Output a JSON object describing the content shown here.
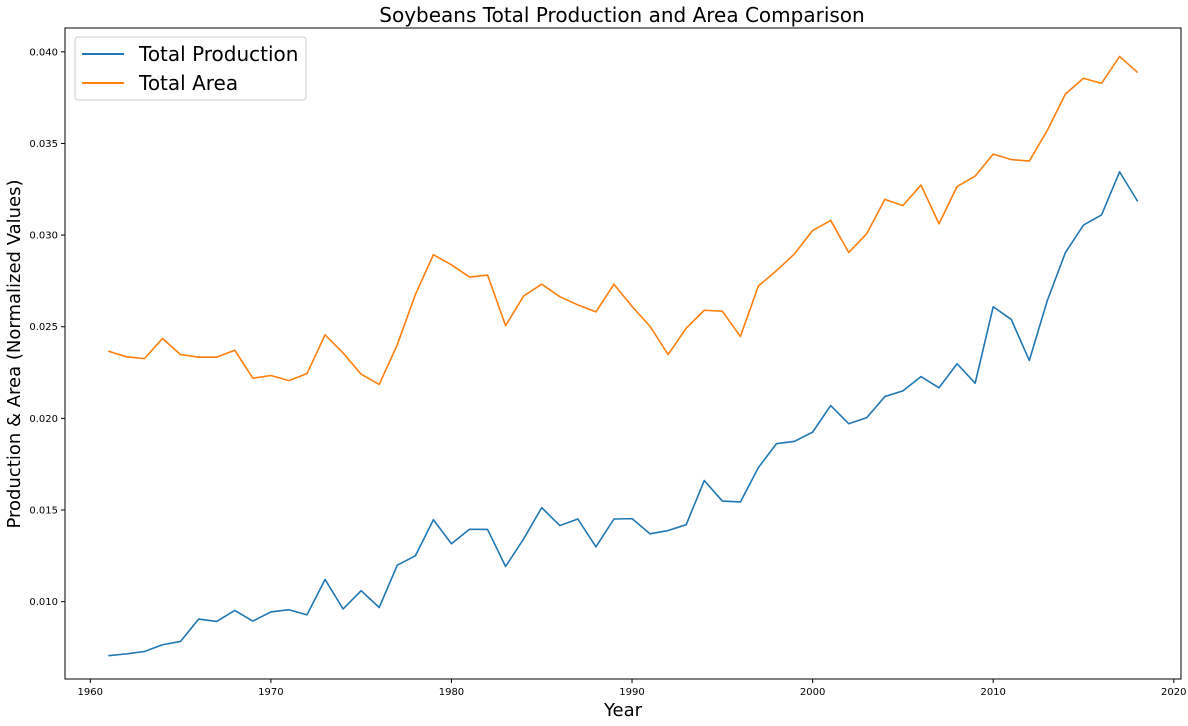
{
  "chart_data": {
    "type": "line",
    "title": "Soybeans Total Production and Area Comparison",
    "xlabel": "Year",
    "ylabel": "Production & Area (Normalized Values)",
    "xlim": [
      1958.6,
      2020.4
    ],
    "ylim": [
      0.00578,
      0.0413
    ],
    "xticks": [
      1960,
      1970,
      1980,
      1990,
      2000,
      2010,
      2020
    ],
    "yticks": [
      0.01,
      0.015,
      0.02,
      0.025,
      0.03,
      0.035,
      0.04
    ],
    "xtick_labels": [
      "1960",
      "1970",
      "1980",
      "1990",
      "2000",
      "2010",
      "2020"
    ],
    "ytick_labels": [
      "0.010",
      "0.015",
      "0.020",
      "0.025",
      "0.030",
      "0.035",
      "0.040"
    ],
    "grid": false,
    "legend_position": "top-left",
    "x": [
      1961,
      1962,
      1963,
      1964,
      1965,
      1966,
      1967,
      1968,
      1969,
      1970,
      1971,
      1972,
      1973,
      1974,
      1975,
      1976,
      1977,
      1978,
      1979,
      1980,
      1981,
      1982,
      1983,
      1984,
      1985,
      1986,
      1987,
      1988,
      1989,
      1990,
      1991,
      1992,
      1993,
      1994,
      1995,
      1996,
      1997,
      1998,
      1999,
      2000,
      2001,
      2002,
      2003,
      2004,
      2005,
      2006,
      2007,
      2008,
      2009,
      2010,
      2011,
      2012,
      2013,
      2014,
      2015,
      2016,
      2017,
      2018
    ],
    "series": [
      {
        "name": "Total Production",
        "color": "#1f77b4",
        "values": [
          0.00705,
          0.00715,
          0.00728,
          0.00765,
          0.00783,
          0.00905,
          0.00892,
          0.00952,
          0.00894,
          0.00944,
          0.00956,
          0.00928,
          0.01121,
          0.0096,
          0.0106,
          0.00968,
          0.01199,
          0.0125,
          0.01447,
          0.01316,
          0.01395,
          0.01394,
          0.01192,
          0.01343,
          0.01513,
          0.01415,
          0.01451,
          0.01299,
          0.01451,
          0.01453,
          0.0137,
          0.01388,
          0.0142,
          0.01661,
          0.01549,
          0.01544,
          0.01732,
          0.01862,
          0.01875,
          0.01925,
          0.0207,
          0.01971,
          0.02004,
          0.02119,
          0.0215,
          0.02228,
          0.02167,
          0.02298,
          0.02192,
          0.02609,
          0.0254,
          0.02316,
          0.02644,
          0.02905,
          0.03055,
          0.0311,
          0.03345,
          0.03184
        ]
      },
      {
        "name": "Total Area",
        "color": "#ff7f0e",
        "values": [
          0.02367,
          0.02336,
          0.02326,
          0.02436,
          0.02348,
          0.02334,
          0.02334,
          0.02372,
          0.02219,
          0.02234,
          0.02206,
          0.02244,
          0.02456,
          0.02357,
          0.02241,
          0.02185,
          0.02402,
          0.02675,
          0.02893,
          0.02838,
          0.02771,
          0.02782,
          0.02506,
          0.02668,
          0.02732,
          0.02664,
          0.02619,
          0.02581,
          0.02732,
          0.02611,
          0.02502,
          0.02348,
          0.02492,
          0.0259,
          0.02585,
          0.02447,
          0.02723,
          0.02806,
          0.02898,
          0.03025,
          0.0308,
          0.02905,
          0.03008,
          0.03195,
          0.03161,
          0.03273,
          0.03062,
          0.03265,
          0.03322,
          0.03442,
          0.03412,
          0.03404,
          0.03572,
          0.0377,
          0.03856,
          0.03828,
          0.03975,
          0.03887
        ]
      }
    ]
  }
}
